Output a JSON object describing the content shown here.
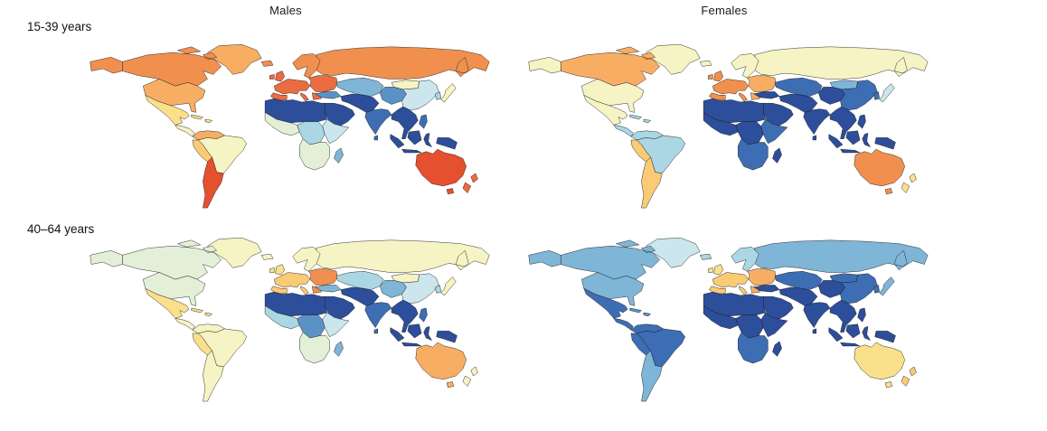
{
  "figure": {
    "columns": [
      {
        "id": "males",
        "label": "Males"
      },
      {
        "id": "females",
        "label": "Females"
      }
    ],
    "rows": [
      {
        "id": "15-39",
        "label": "15-39 years"
      },
      {
        "id": "40-64",
        "label": "40–64 years"
      }
    ]
  },
  "palette": {
    "B1": "#2D4E9A",
    "B2": "#3D6EB4",
    "B3": "#5B92C6",
    "B4": "#7FB5D6",
    "B5": "#ABD6E3",
    "B6": "#CBE6EC",
    "G1": "#E4EFD8",
    "Y0": "#F6F3C4",
    "Y1": "#FBE08C",
    "Y2": "#FACB74",
    "O1": "#F7AE63",
    "O2": "#F1904E",
    "O3": "#EC6C41",
    "R1": "#E5502F"
  },
  "map_style": {
    "border_color": "#1b1b1b",
    "ocean_color": "#ffffff"
  },
  "panels": [
    {
      "id": "males-15-39",
      "column": "Males",
      "row": "15-39 years",
      "region_colors": {
        "greenland": "O1",
        "alaska": "O2",
        "canada": "O2",
        "usa": "O1",
        "mexico": "Y1",
        "central_america": "Y0",
        "caribbean": "Y1",
        "colombia_venezuela": "O1",
        "brazil": "Y0",
        "peru_bolivia": "Y2",
        "argentina_chile": "R1",
        "iceland": "O2",
        "uk": "O3",
        "western_europe": "O3",
        "scandinavia": "O2",
        "eastern_europe": "O3",
        "russia": "O2",
        "central_asia": "B4",
        "turkey": "B3",
        "middle_east": "B1",
        "arabia": "B1",
        "north_africa": "B1",
        "west_africa": "G1",
        "central_africa": "B5",
        "east_africa": "B6",
        "southern_africa": "G1",
        "madagascar": "B4",
        "india": "B2",
        "china_west": "B3",
        "china_east": "B6",
        "mongolia": "Y0",
        "korea": "B5",
        "japan": "Y0",
        "southeast_asia": "B1",
        "philippines": "B2",
        "indonesia": "B1",
        "papua": "B1",
        "australia": "R1",
        "new_zealand": "O3"
      }
    },
    {
      "id": "females-15-39",
      "column": "Females",
      "row": "15-39 years",
      "region_colors": {
        "greenland": "Y0",
        "alaska": "Y0",
        "canada": "O1",
        "usa": "Y0",
        "mexico": "Y0",
        "central_america": "B5",
        "caribbean": "B5",
        "colombia_venezuela": "B5",
        "brazil": "B5",
        "peru_bolivia": "Y2",
        "argentina_chile": "Y2",
        "iceland": "Y0",
        "uk": "O2",
        "western_europe": "O2",
        "scandinavia": "Y0",
        "eastern_europe": "O1",
        "russia": "Y0",
        "central_asia": "B2",
        "turkey": "B1",
        "middle_east": "B1",
        "arabia": "B1",
        "north_africa": "B1",
        "west_africa": "B1",
        "central_africa": "B1",
        "east_africa": "B2",
        "southern_africa": "B2",
        "madagascar": "B1",
        "india": "B1",
        "china_west": "B1",
        "china_east": "B2",
        "mongolia": "B4",
        "korea": "B2",
        "japan": "B6",
        "southeast_asia": "B1",
        "philippines": "B1",
        "indonesia": "B1",
        "papua": "B1",
        "australia": "O2",
        "new_zealand": "Y1"
      }
    },
    {
      "id": "males-40-64",
      "column": "Males",
      "row": "40–64 years",
      "region_colors": {
        "greenland": "Y0",
        "alaska": "G1",
        "canada": "G1",
        "usa": "G1",
        "mexico": "Y1",
        "central_america": "Y0",
        "caribbean": "Y1",
        "colombia_venezuela": "Y0",
        "brazil": "Y0",
        "peru_bolivia": "Y1",
        "argentina_chile": "Y0",
        "iceland": "Y0",
        "uk": "Y1",
        "western_europe": "Y2",
        "scandinavia": "Y0",
        "eastern_europe": "O2",
        "russia": "Y0",
        "central_asia": "B5",
        "turkey": "B4",
        "middle_east": "B1",
        "arabia": "B1",
        "north_africa": "B1",
        "west_africa": "B5",
        "central_africa": "B3",
        "east_africa": "B6",
        "southern_africa": "G1",
        "madagascar": "B4",
        "india": "B2",
        "china_west": "B4",
        "china_east": "B6",
        "mongolia": "Y0",
        "korea": "B5",
        "japan": "Y0",
        "southeast_asia": "B1",
        "philippines": "B2",
        "indonesia": "B1",
        "papua": "B1",
        "australia": "O1",
        "new_zealand": "Y0"
      }
    },
    {
      "id": "females-40-64",
      "column": "Females",
      "row": "40–64 years",
      "region_colors": {
        "greenland": "B6",
        "alaska": "B4",
        "canada": "B4",
        "usa": "B4",
        "mexico": "B2",
        "central_america": "B2",
        "caribbean": "B3",
        "colombia_venezuela": "B2",
        "brazil": "B2",
        "peru_bolivia": "B2",
        "argentina_chile": "B4",
        "iceland": "B5",
        "uk": "Y1",
        "western_europe": "Y2",
        "scandinavia": "B5",
        "eastern_europe": "O1",
        "russia": "B4",
        "central_asia": "B2",
        "turkey": "B1",
        "middle_east": "B1",
        "arabia": "B1",
        "north_africa": "B1",
        "west_africa": "B1",
        "central_africa": "B1",
        "east_africa": "B1",
        "southern_africa": "B2",
        "madagascar": "B1",
        "india": "B1",
        "china_west": "B1",
        "china_east": "B2",
        "mongolia": "B2",
        "korea": "B2",
        "japan": "B4",
        "southeast_asia": "B1",
        "philippines": "B1",
        "indonesia": "B1",
        "papua": "B1",
        "australia": "Y1",
        "new_zealand": "Y2"
      }
    }
  ]
}
